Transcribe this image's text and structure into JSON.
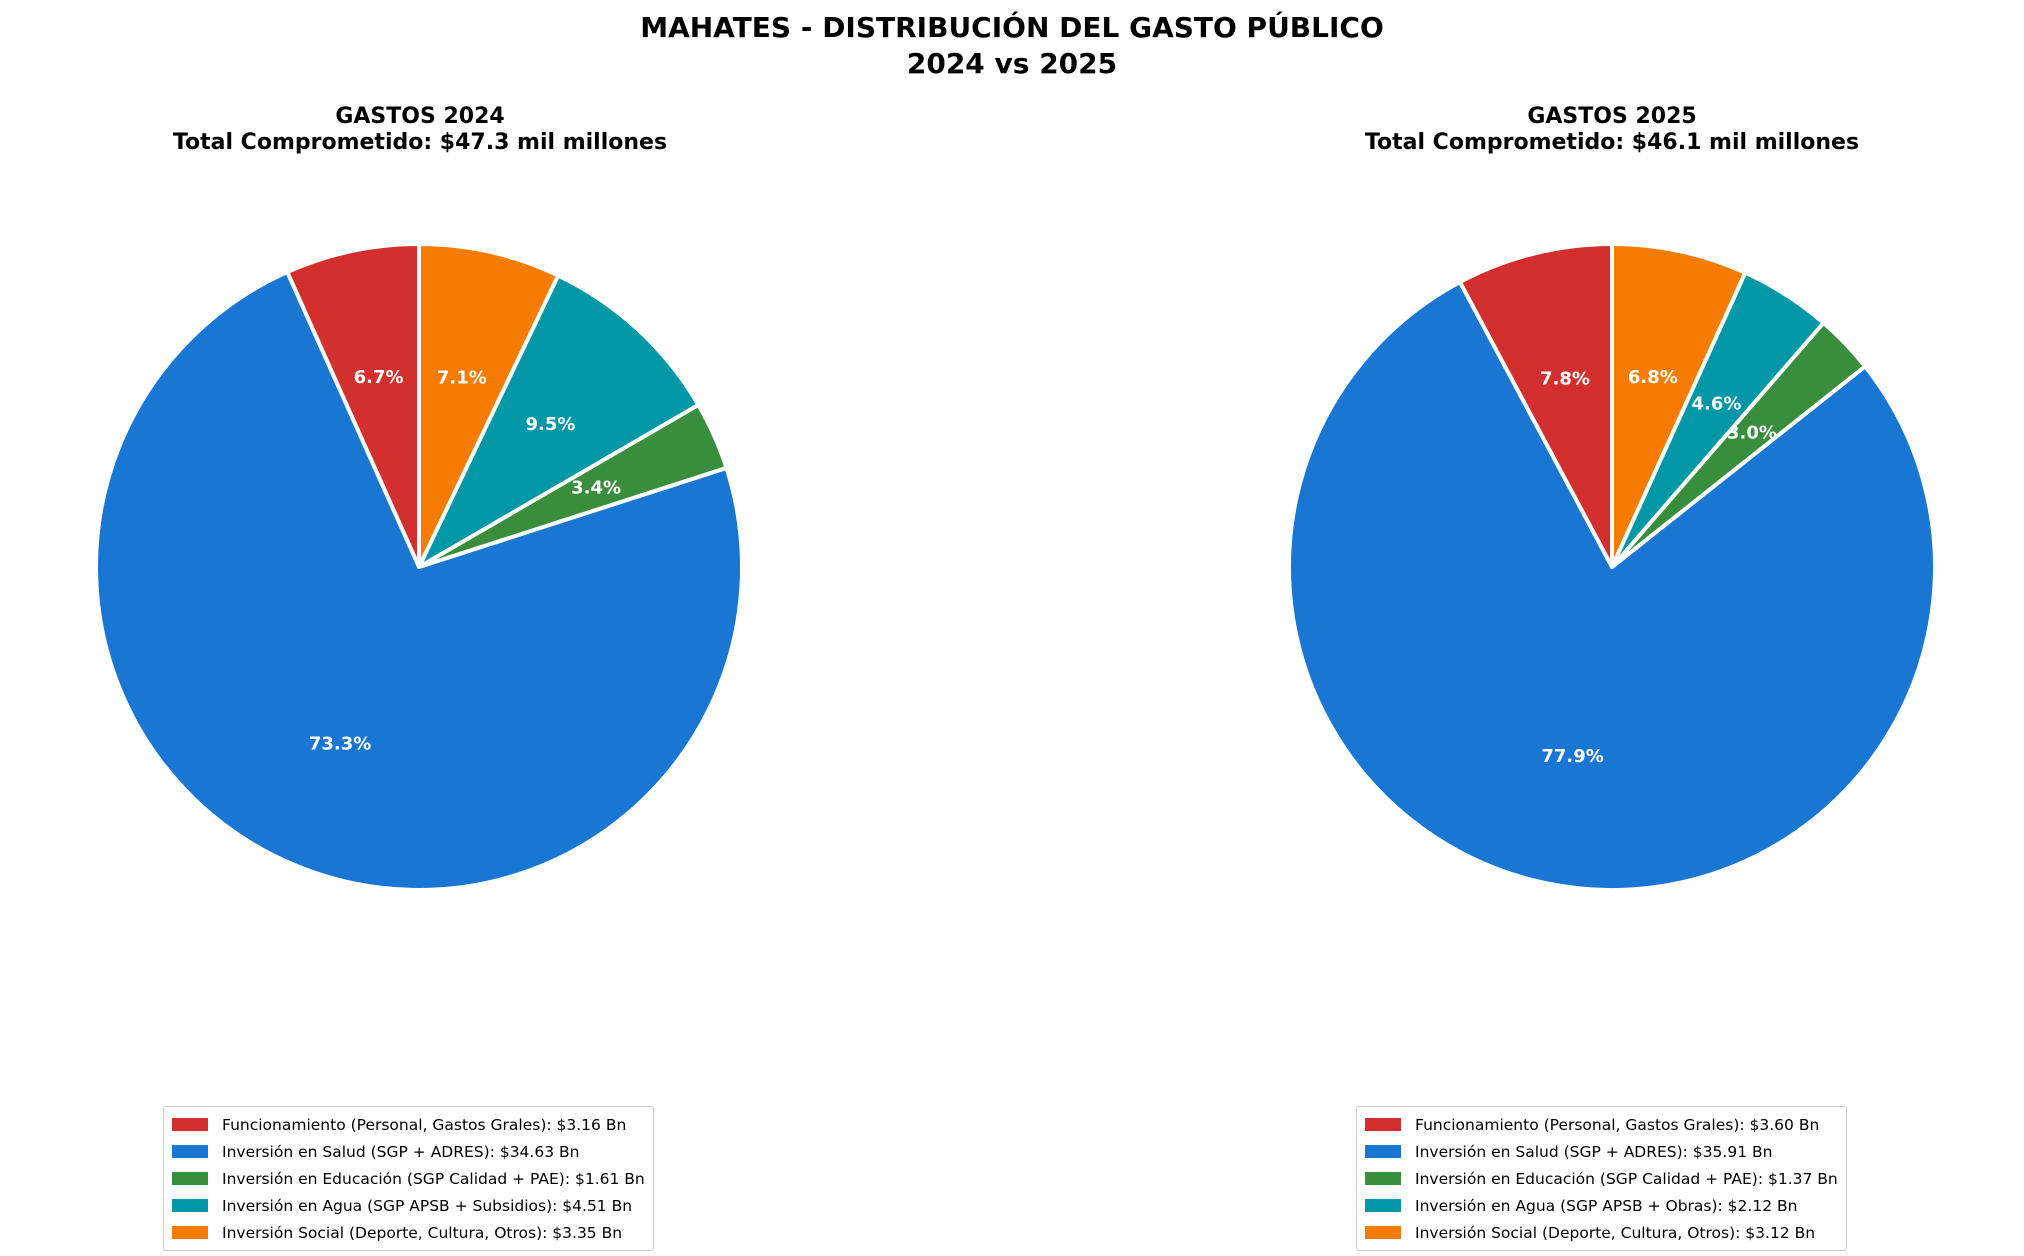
{
  "header": {
    "title_line1": "MAHATES - DISTRIBUCIÓN DEL GASTO PÚBLICO",
    "title_line2": "2024 vs 2025"
  },
  "chart_data": [
    {
      "type": "pie",
      "title": "GASTOS 2024",
      "subtitle": "Total Comprometido: $47.3 mil millones",
      "categories": [
        "Funcionamiento (Personal, Gastos Grales): $3.16 Bn",
        "Inversión en Salud (SGP + ADRES): $34.63 Bn",
        "Inversión en Educación (SGP Calidad + PAE): $1.61 Bn",
        "Inversión en Agua (SGP APSB + Subsidios): $4.51 Bn",
        "Inversión Social (Deporte, Cultura, Otros): $3.35 Bn"
      ],
      "values": [
        3.16,
        34.63,
        1.61,
        4.51,
        3.35
      ],
      "percent_labels": [
        "6.7%",
        "73.3%",
        "3.4%",
        "9.5%",
        "7.1%"
      ],
      "colors": [
        "#d32f2f",
        "#1976d2",
        "#388e3c",
        "#0097a7",
        "#f57c00"
      ],
      "start_angle_deg": 90,
      "direction": "counterclockwise",
      "legend_position": "bottom"
    },
    {
      "type": "pie",
      "title": "GASTOS 2025",
      "subtitle": "Total Comprometido: $46.1 mil millones",
      "categories": [
        "Funcionamiento (Personal, Gastos Grales): $3.60 Bn",
        "Inversión en Salud (SGP + ADRES): $35.91 Bn",
        "Inversión en Educación (SGP Calidad + PAE): $1.37 Bn",
        "Inversión en Agua (SGP APSB + Obras): $2.12 Bn",
        "Inversión Social (Deporte, Cultura, Otros): $3.12 Bn"
      ],
      "values": [
        3.6,
        35.91,
        1.37,
        2.12,
        3.12
      ],
      "percent_labels": [
        "7.8%",
        "77.9%",
        "3.0%",
        "4.6%",
        "6.8%"
      ],
      "colors": [
        "#d32f2f",
        "#1976d2",
        "#388e3c",
        "#0097a7",
        "#f57c00"
      ],
      "start_angle_deg": 90,
      "direction": "counterclockwise",
      "legend_position": "bottom"
    }
  ]
}
